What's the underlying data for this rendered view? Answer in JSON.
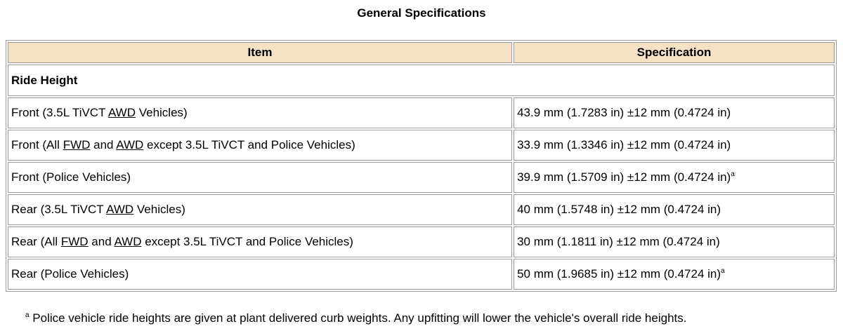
{
  "title": "General Specifications",
  "table": {
    "headers": {
      "item": "Item",
      "specification": "Specification"
    },
    "section": "Ride Height",
    "rows": [
      {
        "item_parts": [
          "Front (3.5L TiVCT ",
          "AWD",
          " Vehicles)"
        ],
        "spec": "43.9 mm (1.7283 in) ±12 mm (0.4724 in)",
        "spec_sup": ""
      },
      {
        "item_parts": [
          "Front (All ",
          "FWD",
          " and ",
          "AWD",
          " except 3.5L TiVCT and Police Vehicles)"
        ],
        "spec": "33.9 mm (1.3346 in) ±12 mm (0.4724 in)",
        "spec_sup": ""
      },
      {
        "item_parts": [
          "Front (Police Vehicles)"
        ],
        "spec": "39.9 mm (1.5709 in) ±12 mm (0.4724 in)",
        "spec_sup": "a"
      },
      {
        "item_parts": [
          "Rear (3.5L TiVCT ",
          "AWD",
          " Vehicles)"
        ],
        "spec": "40 mm (1.5748 in) ±12 mm (0.4724 in)",
        "spec_sup": ""
      },
      {
        "item_parts": [
          "Rear (All ",
          "FWD",
          " and ",
          "AWD",
          " except 3.5L TiVCT and Police Vehicles)"
        ],
        "spec": "30 mm (1.1811 in) ±12 mm (0.4724 in)",
        "spec_sup": ""
      },
      {
        "item_parts": [
          "Rear (Police Vehicles)"
        ],
        "spec": "50 mm (1.9685 in) ±12 mm (0.4724 in)",
        "spec_sup": "a"
      }
    ]
  },
  "footnote": {
    "marker": "a",
    "text": " Police vehicle ride heights are given at plant delivered curb weights. Any upfitting will lower the vehicle's overall ride heights."
  }
}
